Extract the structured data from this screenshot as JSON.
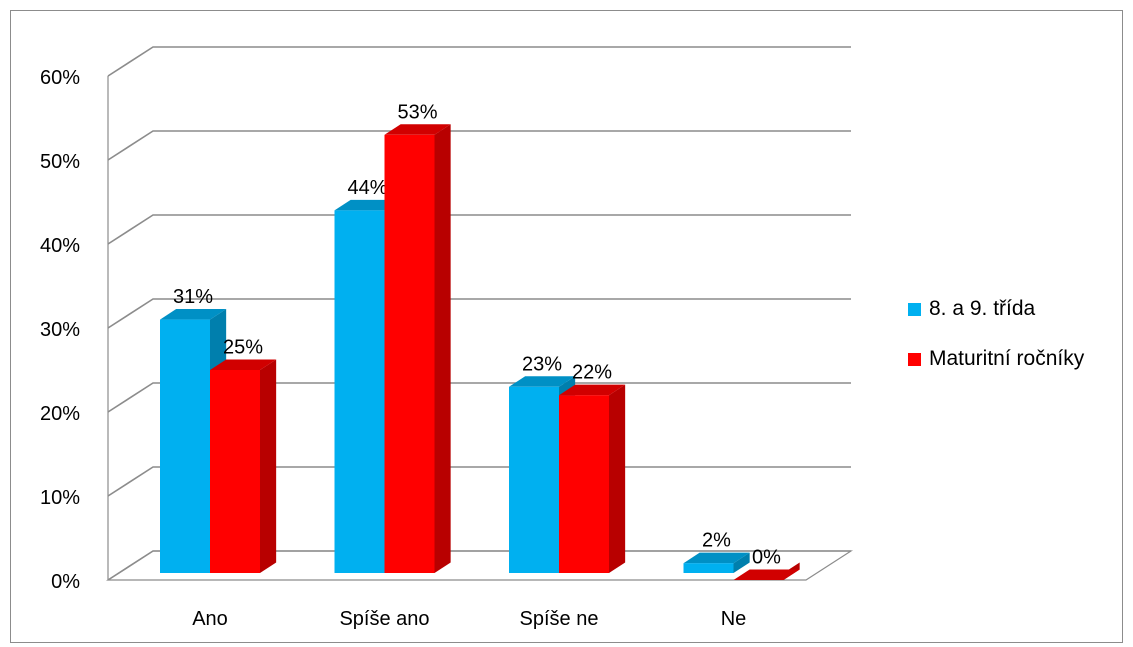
{
  "chart_data": {
    "type": "bar",
    "categories": [
      "Ano",
      "Spíše ano",
      "Spíše ne",
      "Ne"
    ],
    "series": [
      {
        "name": "8. a 9. třída",
        "values": [
          31,
          44,
          23,
          2
        ],
        "color": "#00b0f0",
        "labels": [
          "31%",
          "44%",
          "23%",
          "2%"
        ]
      },
      {
        "name": "Maturitní ročníky",
        "values": [
          25,
          53,
          22,
          0
        ],
        "color": "#ff0000",
        "labels": [
          "25%",
          "53%",
          "22%",
          "0%"
        ]
      }
    ],
    "ylim": [
      0,
      60
    ],
    "yticks": [
      "0%",
      "10%",
      "20%",
      "30%",
      "40%",
      "50%",
      "60%"
    ],
    "grid": true,
    "legend_position": "right",
    "style": "3d-clustered-column"
  }
}
